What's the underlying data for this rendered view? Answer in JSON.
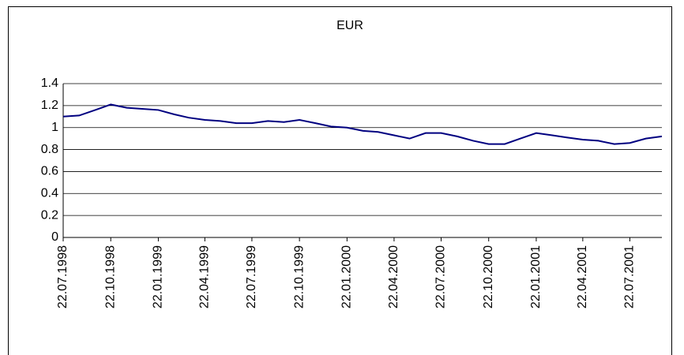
{
  "chart_data": {
    "type": "line",
    "title": "EUR",
    "x": [
      "22.07.1998",
      "22.08.1998",
      "22.09.1998",
      "22.10.1998",
      "22.11.1998",
      "22.12.1998",
      "22.01.1999",
      "22.02.1999",
      "22.03.1999",
      "22.04.1999",
      "22.05.1999",
      "22.06.1999",
      "22.07.1999",
      "22.08.1999",
      "22.09.1999",
      "22.10.1999",
      "22.11.1999",
      "22.12.1999",
      "22.01.2000",
      "22.02.2000",
      "22.03.2000",
      "22.04.2000",
      "22.05.2000",
      "22.06.2000",
      "22.07.2000",
      "22.08.2000",
      "22.09.2000",
      "22.10.2000",
      "22.11.2000",
      "22.12.2000",
      "22.01.2001",
      "22.02.2001",
      "22.03.2001",
      "22.04.2001",
      "22.05.2001",
      "22.06.2001",
      "22.07.2001",
      "22.08.2001",
      "22.09.2001"
    ],
    "series": [
      {
        "name": "EUR",
        "color": "#000080",
        "values": [
          1.1,
          1.11,
          1.16,
          1.21,
          1.18,
          1.17,
          1.16,
          1.12,
          1.09,
          1.07,
          1.06,
          1.04,
          1.04,
          1.06,
          1.05,
          1.07,
          1.04,
          1.01,
          1.0,
          0.97,
          0.96,
          0.93,
          0.9,
          0.95,
          0.95,
          0.92,
          0.88,
          0.85,
          0.85,
          0.9,
          0.95,
          0.93,
          0.91,
          0.89,
          0.88,
          0.85,
          0.86,
          0.9,
          0.92
        ]
      }
    ],
    "xlim": [
      "22.07.1998",
      "22.09.2001"
    ],
    "xticks": [
      "22.07.1998",
      "22.10.1998",
      "22.01.1999",
      "22.04.1999",
      "22.07.1999",
      "22.10.1999",
      "22.01.2000",
      "22.04.2000",
      "22.07.2000",
      "22.10.2000",
      "22.01.2001",
      "22.04.2001",
      "22.07.2001"
    ],
    "ylim": [
      0,
      1.4
    ],
    "yticks": [
      0,
      0.2,
      0.4,
      0.6,
      0.8,
      1,
      1.2,
      1.4
    ],
    "grid": true
  }
}
